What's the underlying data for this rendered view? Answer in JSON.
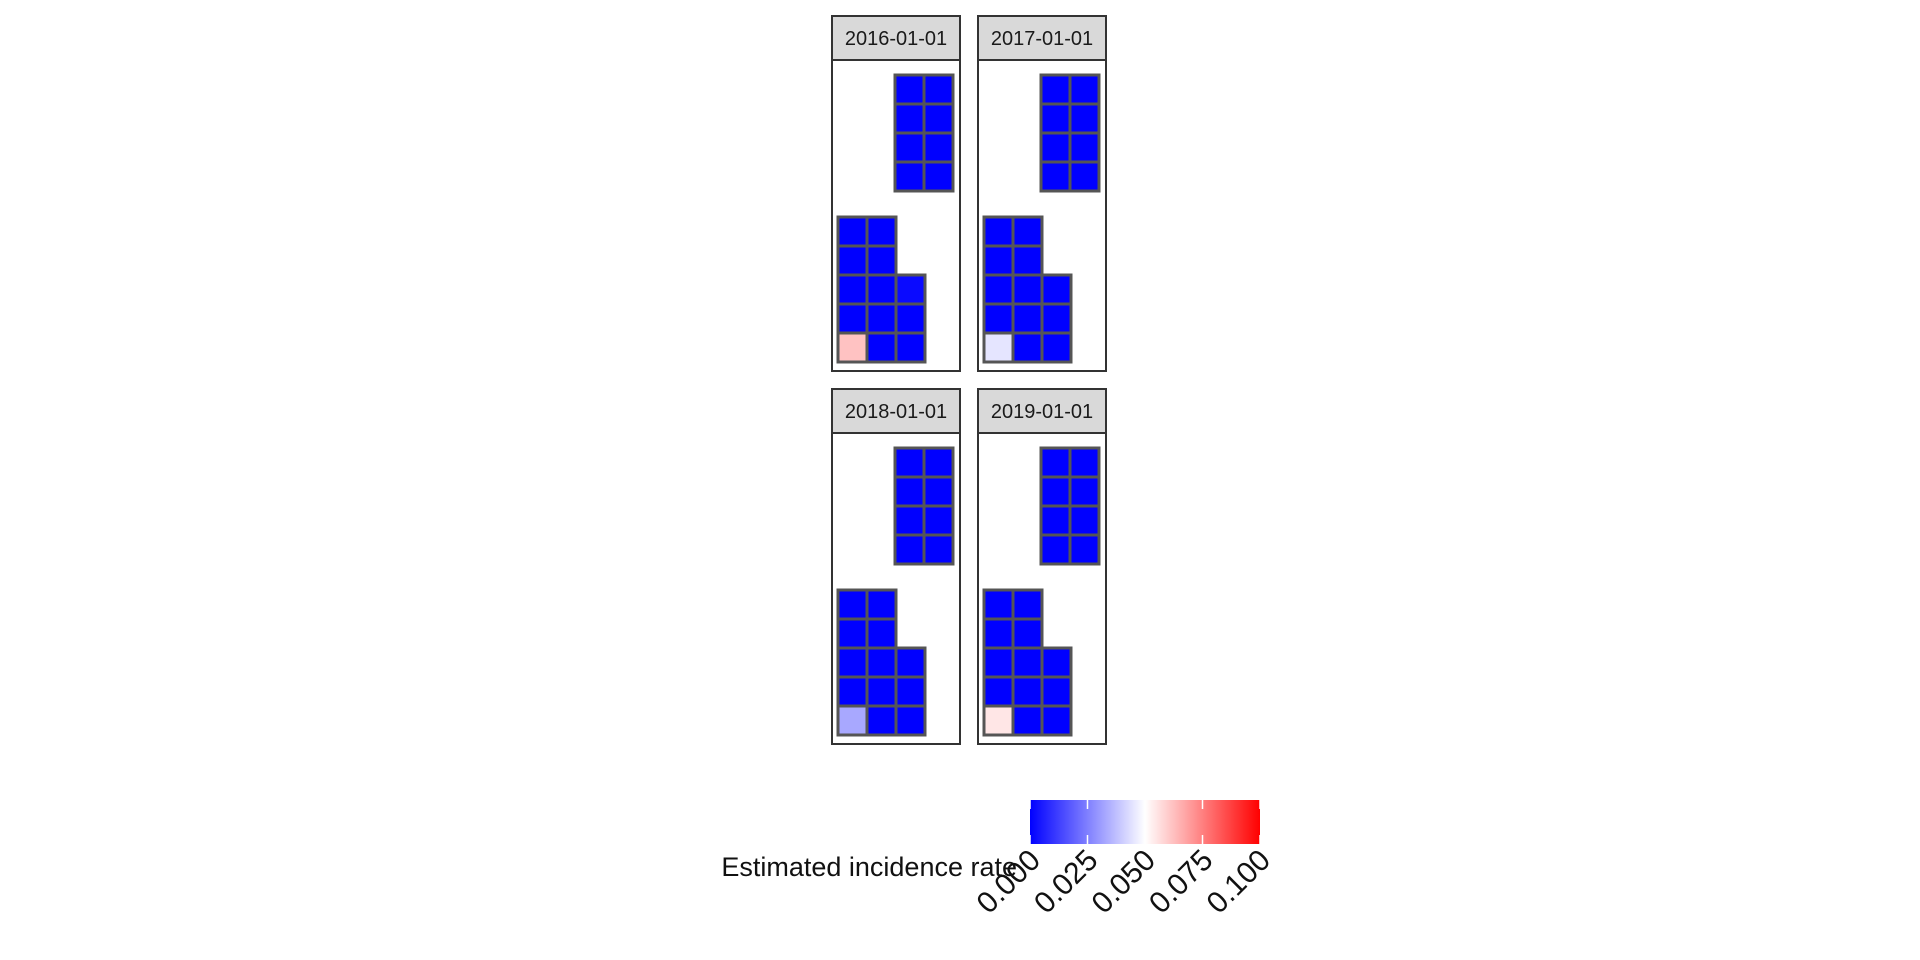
{
  "chart_data": {
    "type": "heatmap",
    "title": "",
    "panels": [
      {
        "label": "2016-01-01",
        "top_block": [
          [
            0,
            0
          ],
          [
            0,
            0
          ],
          [
            0,
            0
          ],
          [
            0,
            0
          ]
        ],
        "bottom_block": [
          [
            0,
            0,
            null
          ],
          [
            0,
            0,
            null
          ],
          [
            0,
            0,
            0.002
          ],
          [
            0,
            0,
            0
          ],
          [
            0.062,
            0,
            0
          ]
        ]
      },
      {
        "label": "2017-01-01",
        "top_block": [
          [
            0,
            0
          ],
          [
            0,
            0
          ],
          [
            0,
            0
          ],
          [
            0,
            0
          ]
        ],
        "bottom_block": [
          [
            0,
            0,
            null
          ],
          [
            0,
            0,
            null
          ],
          [
            0,
            0,
            0
          ],
          [
            0,
            0,
            0
          ],
          [
            0.045,
            0,
            0
          ]
        ]
      },
      {
        "label": "2018-01-01",
        "top_block": [
          [
            0,
            0
          ],
          [
            0,
            0
          ],
          [
            0,
            0
          ],
          [
            0,
            0
          ]
        ],
        "bottom_block": [
          [
            0,
            0,
            null
          ],
          [
            0,
            0,
            null
          ],
          [
            0,
            0,
            0
          ],
          [
            0,
            0,
            0
          ],
          [
            0.033,
            0,
            0
          ]
        ]
      },
      {
        "label": "2019-01-01",
        "top_block": [
          [
            0,
            0
          ],
          [
            0,
            0
          ],
          [
            0,
            0
          ],
          [
            0,
            0
          ]
        ],
        "bottom_block": [
          [
            0,
            0,
            null
          ],
          [
            0,
            0,
            null
          ],
          [
            0,
            0,
            0
          ],
          [
            0,
            0,
            0
          ],
          [
            0.055,
            0,
            0
          ]
        ]
      }
    ],
    "legend": {
      "title": "Estimated incidence rate",
      "position": "bottom",
      "limits": [
        0,
        0.1
      ],
      "midpoint": 0.05,
      "low_color": "#0000ff",
      "mid_color": "#ffffff",
      "high_color": "#ff0000",
      "breaks": [
        0,
        0.025,
        0.05,
        0.075,
        0.1
      ],
      "tick_labels": [
        "0.000",
        "0.025",
        "0.050",
        "0.075",
        "0.100"
      ]
    },
    "grid": false
  }
}
